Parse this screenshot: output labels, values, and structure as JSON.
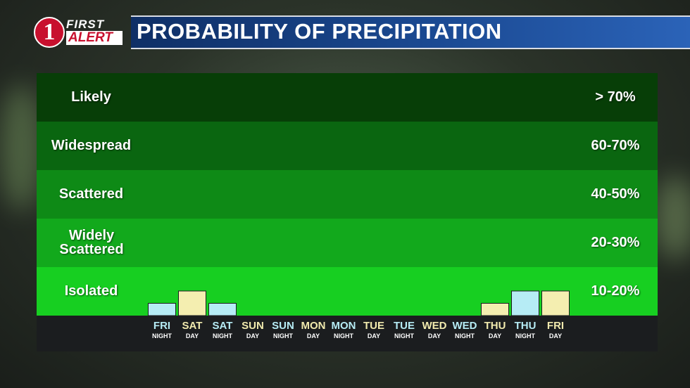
{
  "logo": {
    "number": "1",
    "first": "FIRST",
    "alert": "ALERT"
  },
  "title": "PROBABILITY OF PRECIPITATION",
  "bands": [
    {
      "label": "Likely",
      "range": "> 70%",
      "color": "#073e07"
    },
    {
      "label": "Widespread",
      "range": "60-70%",
      "color": "#0a6610"
    },
    {
      "label": "Scattered",
      "range": "40-50%",
      "color": "#0e8a16"
    },
    {
      "label": "Widely Scattered",
      "range": "20-30%",
      "color": "#12a91c"
    },
    {
      "label": "Isolated",
      "range": "10-20%",
      "color": "#17cf21"
    }
  ],
  "colors": {
    "day_bar": "#f4eeb0",
    "night_bar": "#b6ecf5",
    "axis_strip": "#1b1d1f"
  },
  "chart_data": {
    "type": "bar",
    "title": "PROBABILITY OF PRECIPITATION",
    "categories": [
      {
        "day": "FRI",
        "period": "NIGHT"
      },
      {
        "day": "SAT",
        "period": "DAY"
      },
      {
        "day": "SAT",
        "period": "NIGHT"
      },
      {
        "day": "SUN",
        "period": "DAY"
      },
      {
        "day": "SUN",
        "period": "NIGHT"
      },
      {
        "day": "MON",
        "period": "DAY"
      },
      {
        "day": "MON",
        "period": "NIGHT"
      },
      {
        "day": "TUE",
        "period": "DAY"
      },
      {
        "day": "TUE",
        "period": "NIGHT"
      },
      {
        "day": "WED",
        "period": "DAY"
      },
      {
        "day": "WED",
        "period": "NIGHT"
      },
      {
        "day": "THU",
        "period": "DAY"
      },
      {
        "day": "THU",
        "period": "NIGHT"
      },
      {
        "day": "FRI",
        "period": "DAY"
      }
    ],
    "values": [
      10,
      20,
      10,
      0,
      0,
      0,
      0,
      0,
      0,
      0,
      0,
      10,
      20,
      20
    ],
    "unit": "%",
    "ylim": [
      0,
      20
    ]
  }
}
